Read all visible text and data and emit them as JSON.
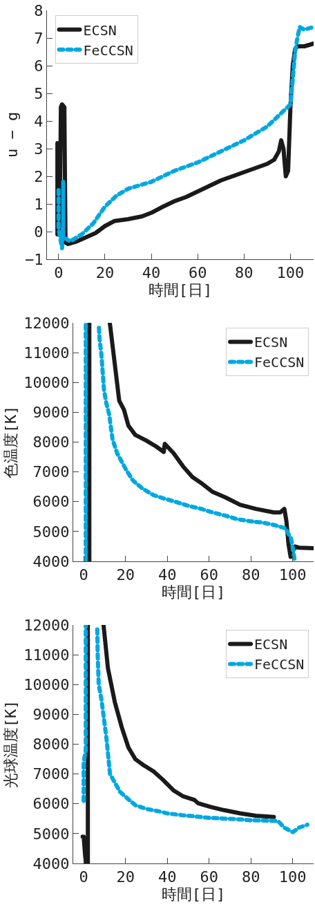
{
  "chart_data": [
    {
      "type": "line",
      "ylabel": "u − g",
      "xlabel": "時間[日]",
      "xlim": [
        -5,
        110
      ],
      "ylim": [
        -1,
        8
      ],
      "xticks": [
        0,
        20,
        40,
        60,
        80,
        100
      ],
      "yticks": [
        {
          "value": -1,
          "label": "−1"
        },
        0,
        1,
        2,
        3,
        4,
        5,
        6,
        7,
        8
      ],
      "grid": false,
      "legend": "top left",
      "series": [
        {
          "name": "ECSN",
          "color": "#1a1a1a",
          "line_style": "solid",
          "x": [
            -0.5,
            -0.5,
            0,
            0.5,
            1,
            1.5,
            2.5,
            3,
            4,
            8,
            12,
            16,
            20,
            24,
            30,
            36,
            40,
            45,
            50,
            55,
            60,
            65,
            70,
            75,
            80,
            85,
            90,
            93,
            95,
            96,
            97,
            98,
            99,
            100,
            101,
            102,
            103,
            106,
            110
          ],
          "values": [
            -0.1,
            3.2,
            3.1,
            0.0,
            4.5,
            4.6,
            4.5,
            -0.4,
            -0.45,
            -0.35,
            -0.2,
            -0.05,
            0.2,
            0.38,
            0.45,
            0.55,
            0.68,
            0.9,
            1.1,
            1.25,
            1.45,
            1.65,
            1.85,
            2.0,
            2.15,
            2.3,
            2.45,
            2.6,
            2.9,
            3.3,
            3.0,
            2.0,
            2.2,
            4.5,
            6.0,
            6.6,
            6.7,
            6.7,
            6.8
          ]
        },
        {
          "name": "FeCCSN",
          "color": "#00a8e1",
          "line_style": "dotted",
          "x": [
            0,
            0,
            1.5,
            2,
            2,
            2,
            5,
            10,
            15,
            20,
            25,
            30,
            40,
            50,
            60,
            70,
            80,
            90,
            95,
            100,
            101,
            102,
            103,
            104,
            106,
            110
          ],
          "values": [
            1.5,
            0.1,
            -0.6,
            0.3,
            1.8,
            -0.2,
            -0.35,
            -0.1,
            0.3,
            0.9,
            1.3,
            1.55,
            1.8,
            2.2,
            2.5,
            2.9,
            3.3,
            3.8,
            4.2,
            4.6,
            5.5,
            6.5,
            7.0,
            7.4,
            7.3,
            7.4
          ]
        }
      ]
    },
    {
      "type": "line",
      "ylabel": "色温度[K]",
      "xlabel": "時間[日]",
      "xlim": [
        -5,
        110
      ],
      "ylim": [
        4000,
        12000
      ],
      "xticks": [
        0,
        20,
        40,
        60,
        80,
        100
      ],
      "yticks": [
        4000,
        5000,
        6000,
        7000,
        8000,
        9000,
        10000,
        11000,
        12000
      ],
      "grid": false,
      "legend": "top right",
      "series": [
        {
          "name": "ECSN",
          "color": "#1a1a1a",
          "line_style": "solid",
          "x": [
            2.7,
            2.7,
            7,
            12.5,
            17,
            19.3,
            21.4,
            24.7,
            30,
            34.5,
            38.3,
            38.8,
            43,
            47.6,
            52,
            56,
            61.7,
            68,
            74.8,
            82.4,
            91,
            94,
            96,
            97,
            98,
            99,
            101,
            103,
            110
          ],
          "values": [
            4000,
            12000,
            null,
            12000,
            9390,
            9080,
            8550,
            8240,
            8050,
            7860,
            7670,
            7940,
            7630,
            7180,
            6830,
            6640,
            6330,
            6140,
            5900,
            5760,
            5640,
            5640,
            5760,
            5340,
            4570,
            4150,
            4500,
            4460,
            4440
          ]
        },
        {
          "name": "FeCCSN",
          "color": "#00a8e1",
          "line_style": "dotted",
          "x": [
            1,
            1,
            4,
            7.3,
            7.6,
            8.4,
            8.9,
            9.7,
            10.8,
            12.2,
            13.8,
            16,
            20.4,
            23.6,
            28,
            33.4,
            38.8,
            44.3,
            49.7,
            56.3,
            61.7,
            68,
            73.7,
            80.2,
            85.6,
            91,
            96.5,
            99.2,
            100.3,
            101
          ],
          "values": [
            4000,
            12000,
            null,
            11830,
            11450,
            10990,
            10530,
            9770,
            9310,
            8930,
            8090,
            7630,
            7060,
            6710,
            6450,
            6220,
            6100,
            5990,
            5870,
            5760,
            5640,
            5530,
            5410,
            5340,
            5300,
            5220,
            5110,
            4770,
            4340,
            4000
          ]
        }
      ]
    },
    {
      "type": "line",
      "ylabel": "光球温度[K]",
      "xlabel": "時間[日]",
      "xlim": [
        -5,
        110
      ],
      "ylim": [
        4000,
        12000
      ],
      "xticks": [
        0,
        20,
        40,
        60,
        80,
        100
      ],
      "yticks": [
        4000,
        5000,
        6000,
        7000,
        8000,
        9000,
        10000,
        11000,
        12000
      ],
      "grid": false,
      "legend": "top right",
      "series": [
        {
          "name": "ECSN",
          "color": "#1a1a1a",
          "line_style": "solid",
          "x": [
            -0.5,
            0,
            1,
            2,
            2,
            5,
            9.5,
            11.6,
            14.9,
            18.2,
            21.4,
            24.7,
            29,
            33.4,
            37.7,
            43.2,
            47.6,
            53,
            54.7,
            60.6,
            67,
            74.8,
            82.4,
            91
          ],
          "values": [
            4900,
            4900,
            4000,
            4000,
            12000,
            null,
            12000,
            10550,
            9410,
            8570,
            7890,
            7500,
            7280,
            7090,
            6820,
            6440,
            6250,
            6130,
            6020,
            5900,
            5790,
            5680,
            5600,
            5560
          ]
        },
        {
          "name": "FeCCSN",
          "color": "#00a8e1",
          "line_style": "dotted",
          "x": [
            0,
            0,
            1,
            1,
            4,
            6.5,
            6.7,
            7.2,
            8.5,
            9.8,
            10.9,
            12.6,
            15,
            17.4,
            20.6,
            24.8,
            30,
            36.5,
            40,
            47,
            53,
            60,
            66,
            72,
            80,
            87,
            93,
            96,
            100,
            103,
            107
          ],
          "values": [
            6100,
            7400,
            7800,
            12000,
            null,
            11850,
            11000,
            10000,
            9500,
            8800,
            8200,
            7000,
            6700,
            6400,
            6200,
            5950,
            5830,
            5740,
            5680,
            5620,
            5580,
            5530,
            5510,
            5490,
            5450,
            5440,
            5420,
            5200,
            5050,
            5200,
            5300
          ]
        }
      ]
    }
  ]
}
